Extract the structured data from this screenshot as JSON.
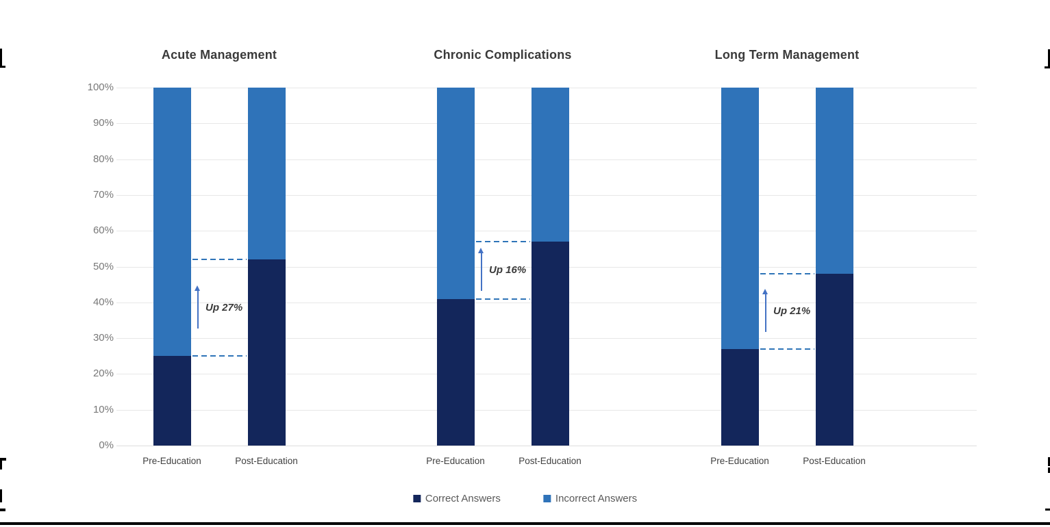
{
  "page": {
    "background": "#FFFFFF"
  },
  "colors": {
    "correct": "#13265B",
    "incorrect": "#2F73B9",
    "dash_line": "#2E74B8",
    "arrow": "#4472C4",
    "gridline": "#E7E7E7",
    "zero_line": "#DDDDDD",
    "axis_text": "#787878",
    "title_text": "#3A3A3A",
    "category_text": "#3F3F3F",
    "annotation_text": "#3A3A3A",
    "legend_text": "#595959"
  },
  "chart_data": {
    "type": "bar",
    "stacked": true,
    "orientation": "vertical",
    "unit": "%",
    "ylim": [
      0,
      100
    ],
    "ytick_values": [
      0,
      10,
      20,
      30,
      40,
      50,
      60,
      70,
      80,
      90,
      100
    ],
    "ytick_labels": [
      "0%",
      "10%",
      "20%",
      "30%",
      "40%",
      "50%",
      "60%",
      "70%",
      "80%",
      "90%",
      "100%"
    ],
    "grid": "horizontal",
    "categories": [
      "Pre-Education",
      "Post-Education"
    ],
    "legend": [
      "Correct Answers",
      "Incorrect Answers"
    ],
    "legend_position": "bottom",
    "panels": [
      {
        "title": "Acute Management",
        "series": [
          {
            "name": "Correct Answers",
            "values": [
              25,
              52
            ]
          },
          {
            "name": "Incorrect Answers",
            "values": [
              75,
              48
            ]
          }
        ],
        "annotation": {
          "label": "Up 27%",
          "from": 25,
          "to": 52
        }
      },
      {
        "title": "Chronic Complications",
        "series": [
          {
            "name": "Correct Answers",
            "values": [
              41,
              57
            ]
          },
          {
            "name": "Incorrect Answers",
            "values": [
              59,
              43
            ]
          }
        ],
        "annotation": {
          "label": "Up 16%",
          "from": 41,
          "to": 57
        }
      },
      {
        "title": "Long Term Management",
        "series": [
          {
            "name": "Correct Answers",
            "values": [
              27,
              48
            ]
          },
          {
            "name": "Incorrect Answers",
            "values": [
              73,
              52
            ]
          }
        ],
        "annotation": {
          "label": "Up 21%",
          "from": 27,
          "to": 48
        }
      }
    ]
  }
}
